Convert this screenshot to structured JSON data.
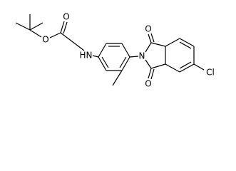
{
  "atoms": {
    "ester_o": "O",
    "carbonyl_o": "O",
    "amide_h": "H",
    "amide_n": "N",
    "imide_n": "N",
    "imide_o_top": "O",
    "imide_o_bottom": "O",
    "chlorine": "Cl"
  }
}
